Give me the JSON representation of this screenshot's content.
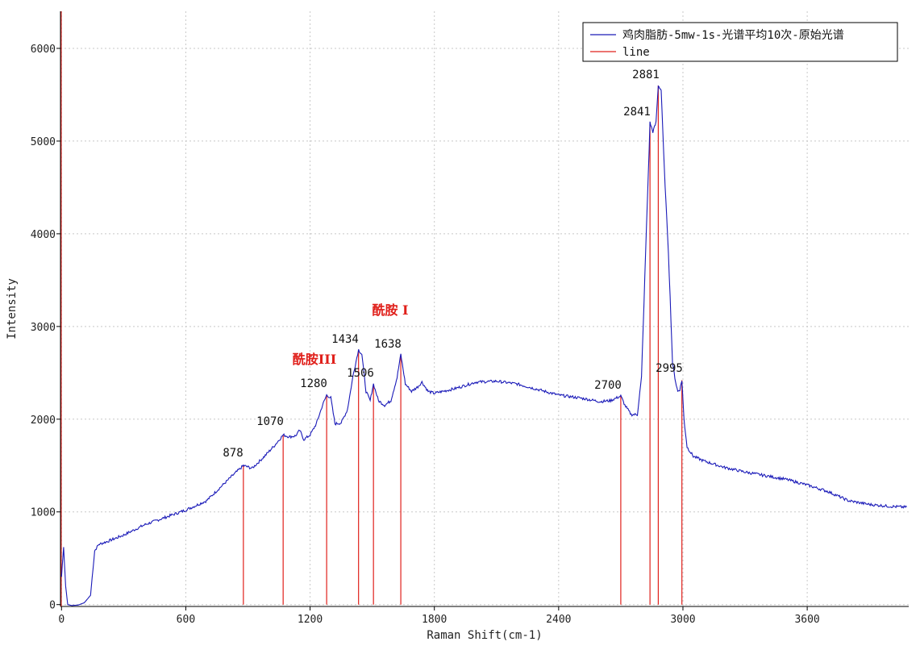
{
  "colors": {
    "spectrum": "#1a1ab8",
    "line": "#e0201b",
    "grid": "#c8c8c8",
    "axis": "#000000",
    "annotation": "#e0201b"
  },
  "chart_data": {
    "type": "line",
    "xlabel": "Raman Shift(cm-1)",
    "ylabel": "Intensity",
    "xlim": [
      -5,
      4090
    ],
    "ylim": [
      -20,
      6400
    ],
    "xticks": [
      0,
      600,
      1200,
      1800,
      2400,
      3000,
      3600
    ],
    "yticks": [
      0,
      1000,
      2000,
      3000,
      4000,
      5000,
      6000
    ],
    "grid": true,
    "legend_position": "top-right",
    "legend": [
      {
        "label": "鸡肉脂肪-5mw-1s-光谱平均10次-原始光谱",
        "color": "#1a1ab8"
      },
      {
        "label": "line",
        "color": "#e0201b"
      }
    ],
    "series": [
      {
        "name": "鸡肉脂肪-5mw-1s-光谱平均10次-原始光谱",
        "color": "#1a1ab8",
        "x": [
          0,
          10,
          20,
          30,
          50,
          80,
          110,
          140,
          160,
          180,
          220,
          300,
          400,
          500,
          600,
          700,
          760,
          820,
          878,
          920,
          980,
          1030,
          1070,
          1100,
          1130,
          1150,
          1170,
          1200,
          1230,
          1260,
          1280,
          1300,
          1320,
          1350,
          1380,
          1410,
          1434,
          1450,
          1470,
          1490,
          1506,
          1530,
          1560,
          1590,
          1620,
          1638,
          1660,
          1690,
          1720,
          1740,
          1770,
          1800,
          1900,
          2000,
          2100,
          2200,
          2300,
          2400,
          2500,
          2600,
          2650,
          2700,
          2720,
          2750,
          2780,
          2800,
          2820,
          2841,
          2855,
          2870,
          2881,
          2895,
          2910,
          2930,
          2950,
          2965,
          2975,
          2985,
          2995,
          3005,
          3020,
          3050,
          3100,
          3200,
          3300,
          3400,
          3500,
          3600,
          3700,
          3800,
          3900,
          4000,
          4080
        ],
        "y": [
          300,
          620,
          200,
          0,
          -10,
          -5,
          20,
          100,
          580,
          650,
          680,
          750,
          860,
          940,
          1020,
          1120,
          1250,
          1380,
          1500,
          1470,
          1600,
          1720,
          1830,
          1810,
          1820,
          1880,
          1780,
          1830,
          1950,
          2150,
          2260,
          2230,
          1950,
          1960,
          2100,
          2500,
          2750,
          2700,
          2300,
          2200,
          2380,
          2200,
          2150,
          2200,
          2450,
          2700,
          2380,
          2300,
          2350,
          2400,
          2300,
          2280,
          2330,
          2400,
          2410,
          2380,
          2320,
          2260,
          2230,
          2190,
          2200,
          2250,
          2150,
          2050,
          2050,
          2450,
          3800,
          5200,
          5100,
          5200,
          5600,
          5550,
          4700,
          3800,
          2600,
          2400,
          2300,
          2320,
          2420,
          2000,
          1700,
          1600,
          1550,
          1480,
          1430,
          1390,
          1350,
          1290,
          1220,
          1120,
          1080,
          1060,
          1050
        ]
      }
    ],
    "lines": [
      {
        "x": 878,
        "top": 1500
      },
      {
        "x": 1070,
        "top": 1830
      },
      {
        "x": 1280,
        "top": 2260
      },
      {
        "x": 1434,
        "top": 2750
      },
      {
        "x": 1506,
        "top": 2380
      },
      {
        "x": 1638,
        "top": 2700
      },
      {
        "x": 2700,
        "top": 2250
      },
      {
        "x": 2841,
        "top": 5200
      },
      {
        "x": 2881,
        "top": 5600
      },
      {
        "x": 2995,
        "top": 2420
      }
    ],
    "peak_labels": [
      "878",
      "1070",
      "1280",
      "1434",
      "1506",
      "1638",
      "2700",
      "2841",
      "2881",
      "2995"
    ],
    "annotations": [
      "酰胺III",
      "酰胺 I"
    ]
  }
}
